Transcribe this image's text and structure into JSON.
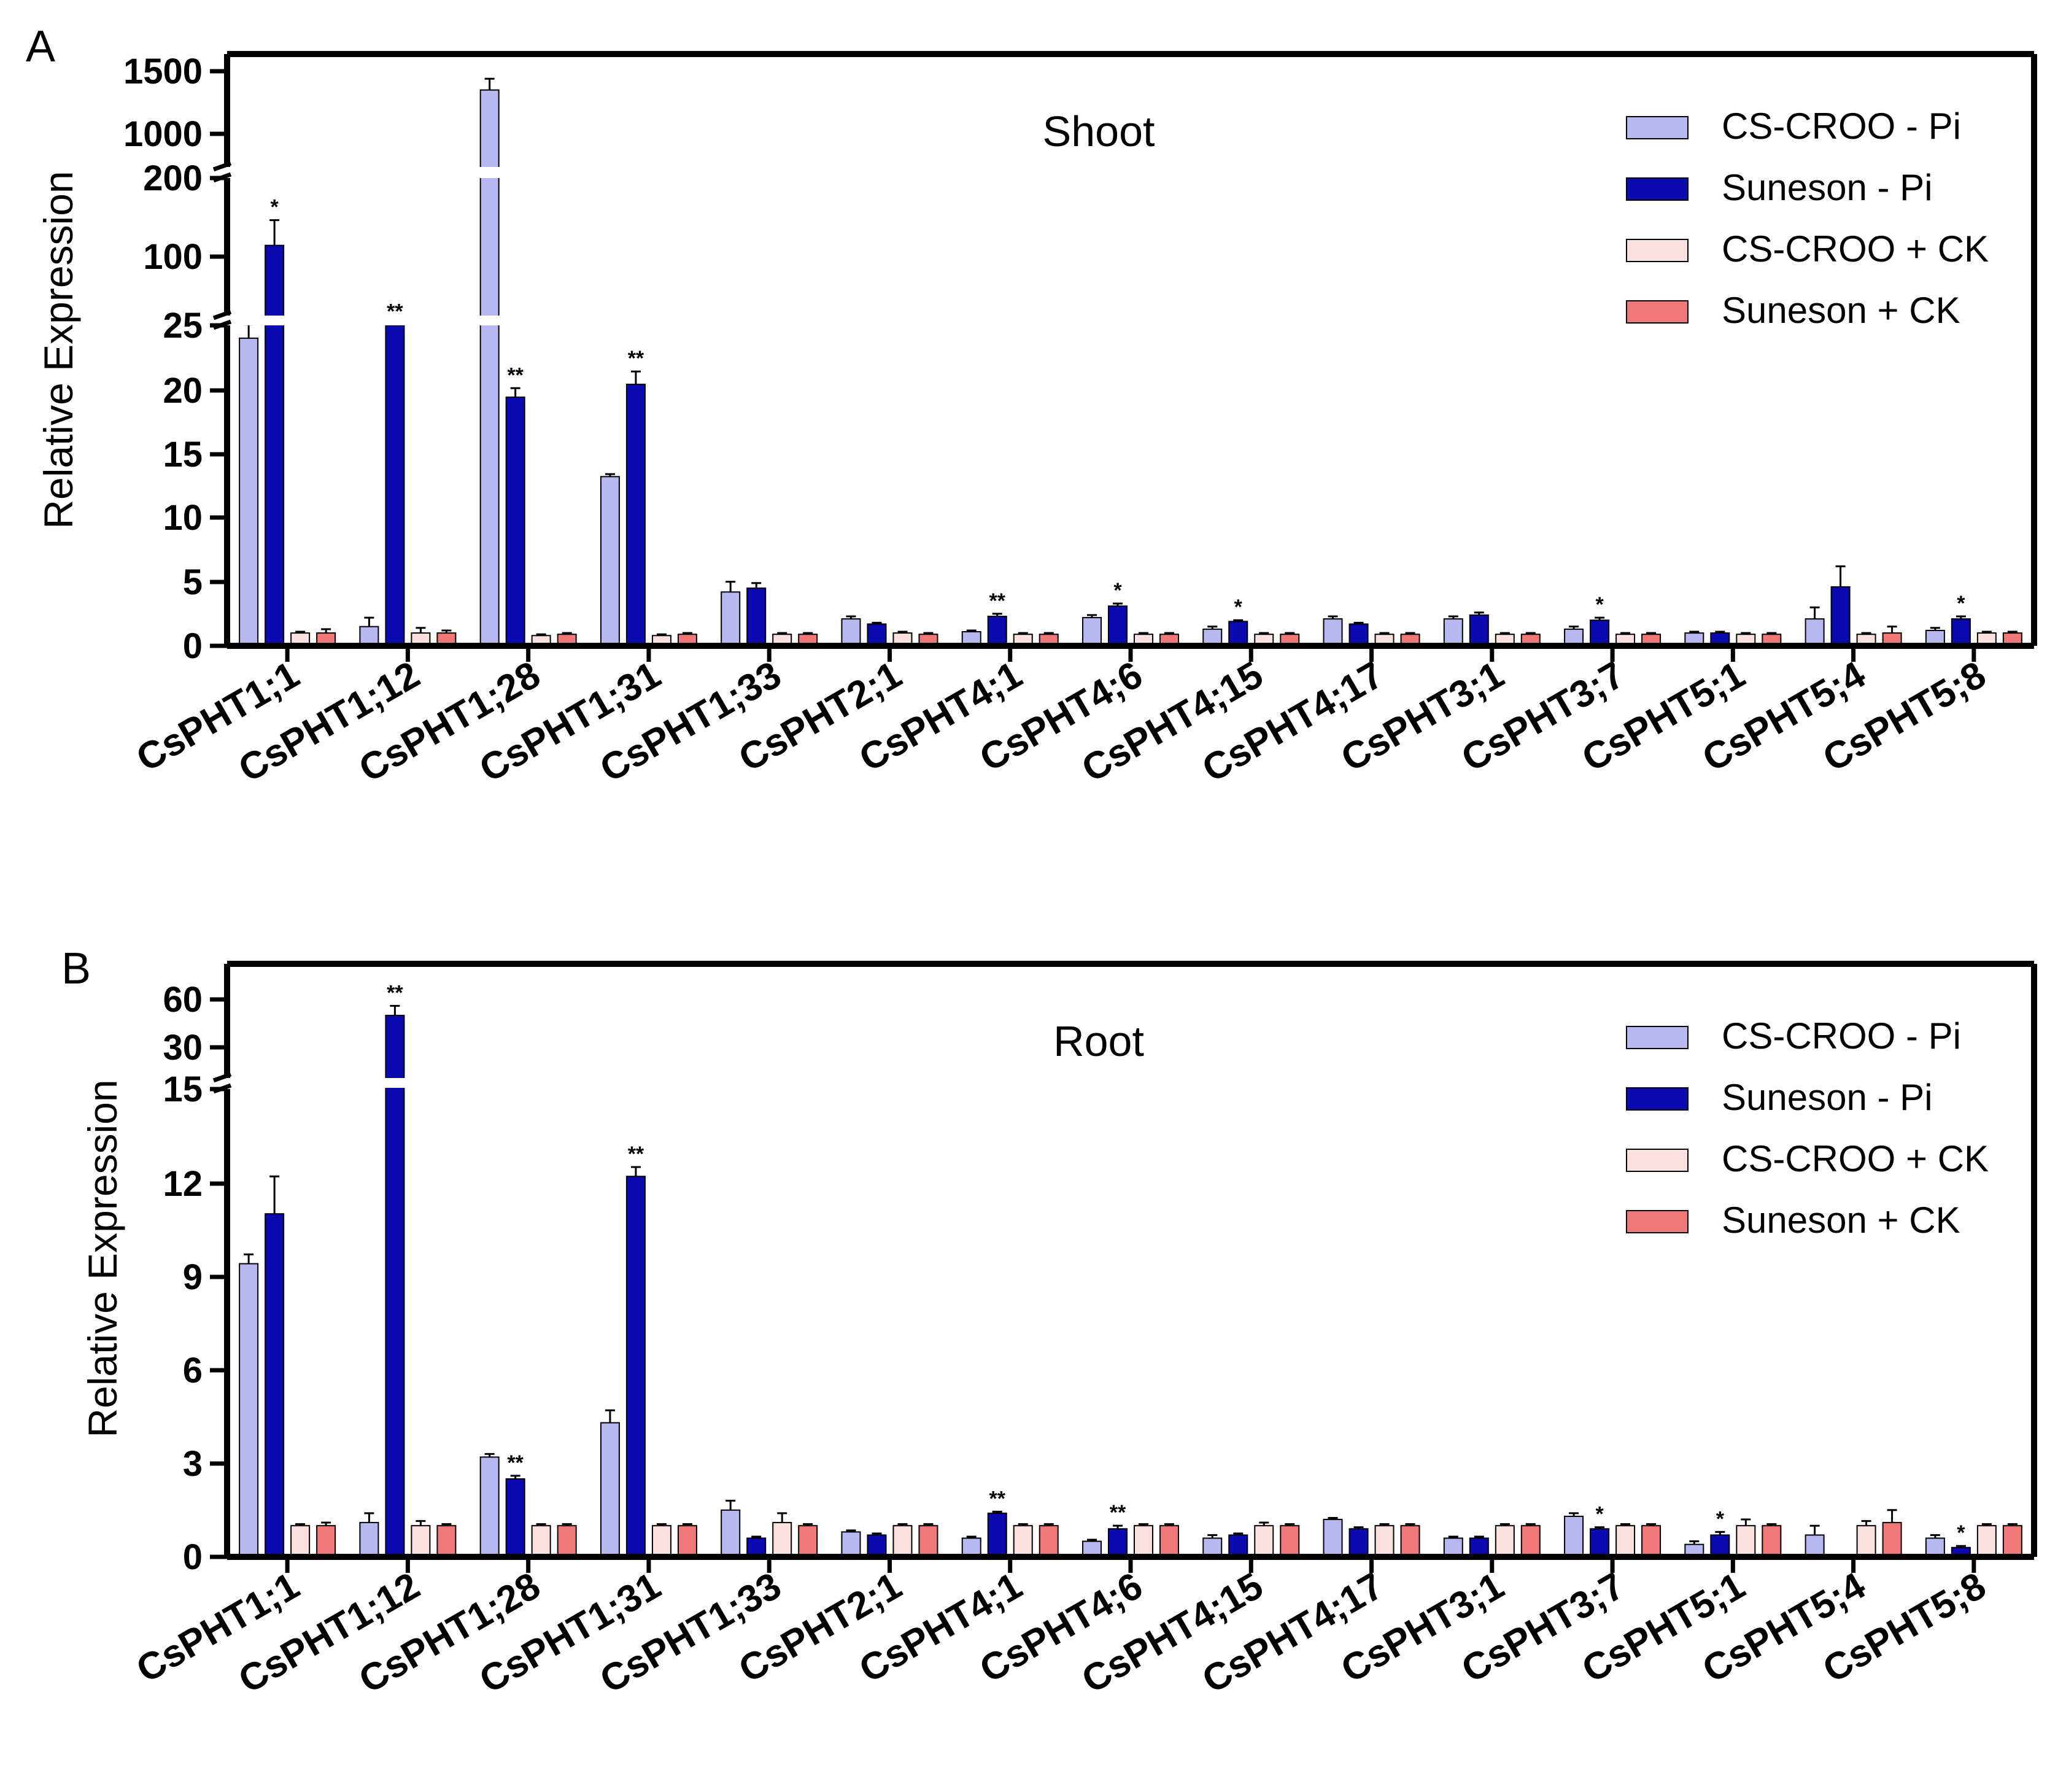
{
  "chart_data": [
    {
      "type": "bar",
      "panel_label": "A",
      "title": "Shoot",
      "ylabel": "Relative Expression",
      "xlabel": "",
      "y_axis_breaks": [
        [
          25,
          1000
        ]
      ],
      "y_segments": [
        [
          0,
          25
        ],
        [
          25,
          200
        ],
        [
          1000,
          1500
        ]
      ],
      "y_ticks": [
        "0",
        "5",
        "10",
        "15",
        "20",
        "25",
        "100",
        "200",
        "1000",
        "1500"
      ],
      "legend_position": "top-right",
      "categories": [
        "CsPHT1;1",
        "CsPHT1;12",
        "CsPHT1;28",
        "CsPHT1;31",
        "CsPHT1;33",
        "CsPHT2;1",
        "CsPHT4;1",
        "CsPHT4;6",
        "CsPHT4;15",
        "CsPHT4;17",
        "CsPHT3;1",
        "CsPHT3;7",
        "CsPHT5;1",
        "CsPHT5;4",
        "CsPHT5;8"
      ],
      "series": [
        {
          "name": "CS-CROO - Pi",
          "color": "#b8b8f0",
          "values": [
            24,
            1.5,
            1350,
            13.2,
            4.2,
            2.1,
            1.1,
            2.2,
            1.3,
            2.1,
            2.1,
            1.3,
            1.0,
            2.1,
            1.2
          ],
          "errors": [
            2,
            0.7,
            90,
            0.2,
            0.8,
            0.2,
            0.1,
            0.2,
            0.2,
            0.2,
            0.2,
            0.2,
            0.1,
            0.9,
            0.2
          ]
        },
        {
          "name": "Suneson - Pi",
          "color": "#0a0ab0",
          "values": [
            120,
            25,
            19.4,
            20.4,
            4.5,
            1.7,
            2.3,
            3.1,
            1.9,
            1.7,
            2.4,
            2.0,
            1.0,
            4.6,
            2.1
          ],
          "errors": [
            30,
            1,
            0.7,
            1.0,
            0.4,
            0.1,
            0.2,
            0.2,
            0.1,
            0.1,
            0.2,
            0.2,
            0.1,
            1.6,
            0.2
          ]
        },
        {
          "name": "CS-CROO + CK",
          "color": "#fbe0e0",
          "values": [
            1,
            1,
            0.8,
            0.8,
            0.9,
            1.0,
            0.9,
            0.9,
            0.9,
            0.9,
            0.9,
            0.9,
            0.9,
            0.9,
            1.0
          ],
          "errors": [
            0.1,
            0.4,
            0.1,
            0.1,
            0.1,
            0.1,
            0.1,
            0.1,
            0.1,
            0.1,
            0.1,
            0.1,
            0.1,
            0.1,
            0.1
          ]
        },
        {
          "name": "Suneson + CK",
          "color": "#f07878",
          "values": [
            1,
            1,
            0.9,
            0.9,
            0.9,
            0.9,
            0.9,
            0.9,
            0.9,
            0.9,
            0.9,
            0.9,
            0.9,
            1.0,
            1.0
          ],
          "errors": [
            0.3,
            0.2,
            0.1,
            0.1,
            0.1,
            0.1,
            0.1,
            0.1,
            0.1,
            0.1,
            0.1,
            0.1,
            0.1,
            0.5,
            0.1
          ]
        }
      ],
      "significance": [
        {
          "category": "CsPHT1;1",
          "series": "Suneson - Pi",
          "label": "*"
        },
        {
          "category": "CsPHT1;12",
          "series": "Suneson - Pi",
          "label": "**"
        },
        {
          "category": "CsPHT1;28",
          "series": "Suneson - Pi",
          "label": "**"
        },
        {
          "category": "CsPHT1;31",
          "series": "Suneson - Pi",
          "label": "**"
        },
        {
          "category": "CsPHT4;1",
          "series": "Suneson - Pi",
          "label": "**"
        },
        {
          "category": "CsPHT4;6",
          "series": "Suneson - Pi",
          "label": "*"
        },
        {
          "category": "CsPHT4;15",
          "series": "Suneson - Pi",
          "label": "*"
        },
        {
          "category": "CsPHT3;7",
          "series": "Suneson - Pi",
          "label": "*"
        },
        {
          "category": "CsPHT5;8",
          "series": "Suneson - Pi",
          "label": "*"
        }
      ]
    },
    {
      "type": "bar",
      "panel_label": "B",
      "title": "Root",
      "ylabel": "Relative Expression",
      "xlabel": "",
      "y_axis_breaks": [
        [
          15,
          30
        ]
      ],
      "y_segments": [
        [
          0,
          15
        ],
        [
          30,
          60
        ]
      ],
      "y_ticks": [
        "0",
        "3",
        "6",
        "9",
        "12",
        "15",
        "30",
        "60"
      ],
      "legend_position": "top-right",
      "categories": [
        "CsPHT1;1",
        "CsPHT1;12",
        "CsPHT1;28",
        "CsPHT1;31",
        "CsPHT1;33",
        "CsPHT2;1",
        "CsPHT4;1",
        "CsPHT4;6",
        "CsPHT4;15",
        "CsPHT4;17",
        "CsPHT3;1",
        "CsPHT3;7",
        "CsPHT5;1",
        "CsPHT5;4",
        "CsPHT5;8"
      ],
      "series": [
        {
          "name": "CS-CROO - Pi",
          "color": "#b8b8f0",
          "values": [
            9.4,
            1.1,
            3.2,
            4.3,
            1.5,
            0.8,
            0.6,
            0.5,
            0.6,
            1.2,
            0.6,
            1.3,
            0.4,
            0.7,
            0.6
          ],
          "errors": [
            0.3,
            0.3,
            0.1,
            0.4,
            0.3,
            0.05,
            0.05,
            0.05,
            0.1,
            0.05,
            0.05,
            0.1,
            0.1,
            0.3,
            0.1
          ]
        },
        {
          "name": "Suneson - Pi",
          "color": "#0a0ab0",
          "values": [
            11.0,
            50,
            2.5,
            12.2,
            0.6,
            0.7,
            1.4,
            0.9,
            0.7,
            0.9,
            0.6,
            0.9,
            0.7,
            0,
            0.3
          ],
          "errors": [
            1.2,
            6,
            0.1,
            0.3,
            0.05,
            0.05,
            0.05,
            0.1,
            0.05,
            0.05,
            0.05,
            0.05,
            0.1,
            0,
            0.05
          ]
        },
        {
          "name": "CS-CROO + CK",
          "color": "#fbe0e0",
          "values": [
            1.0,
            1.0,
            1.0,
            1.0,
            1.1,
            1.0,
            1.0,
            1.0,
            1.0,
            1.0,
            1.0,
            1.0,
            1.0,
            1.0,
            1.0
          ],
          "errors": [
            0.05,
            0.15,
            0.05,
            0.05,
            0.3,
            0.05,
            0.05,
            0.05,
            0.1,
            0.05,
            0.05,
            0.05,
            0.2,
            0.15,
            0.05
          ]
        },
        {
          "name": "Suneson + CK",
          "color": "#f07878",
          "values": [
            1.0,
            1.0,
            1.0,
            1.0,
            1.0,
            1.0,
            1.0,
            1.0,
            1.0,
            1.0,
            1.0,
            1.0,
            1.0,
            1.1,
            1.0
          ],
          "errors": [
            0.1,
            0.05,
            0.05,
            0.05,
            0.05,
            0.05,
            0.05,
            0.05,
            0.05,
            0.05,
            0.05,
            0.05,
            0.05,
            0.4,
            0.05
          ]
        }
      ],
      "significance": [
        {
          "category": "CsPHT1;12",
          "series": "Suneson - Pi",
          "label": "**"
        },
        {
          "category": "CsPHT1;28",
          "series": "Suneson - Pi",
          "label": "**"
        },
        {
          "category": "CsPHT1;31",
          "series": "Suneson - Pi",
          "label": "**"
        },
        {
          "category": "CsPHT4;1",
          "series": "Suneson - Pi",
          "label": "**"
        },
        {
          "category": "CsPHT4;6",
          "series": "Suneson - Pi",
          "label": "**"
        },
        {
          "category": "CsPHT3;7",
          "series": "Suneson - Pi",
          "label": "*"
        },
        {
          "category": "CsPHT5;1",
          "series": "Suneson - Pi",
          "label": "*"
        },
        {
          "category": "CsPHT5;8",
          "series": "Suneson - Pi",
          "label": "*"
        }
      ]
    }
  ]
}
